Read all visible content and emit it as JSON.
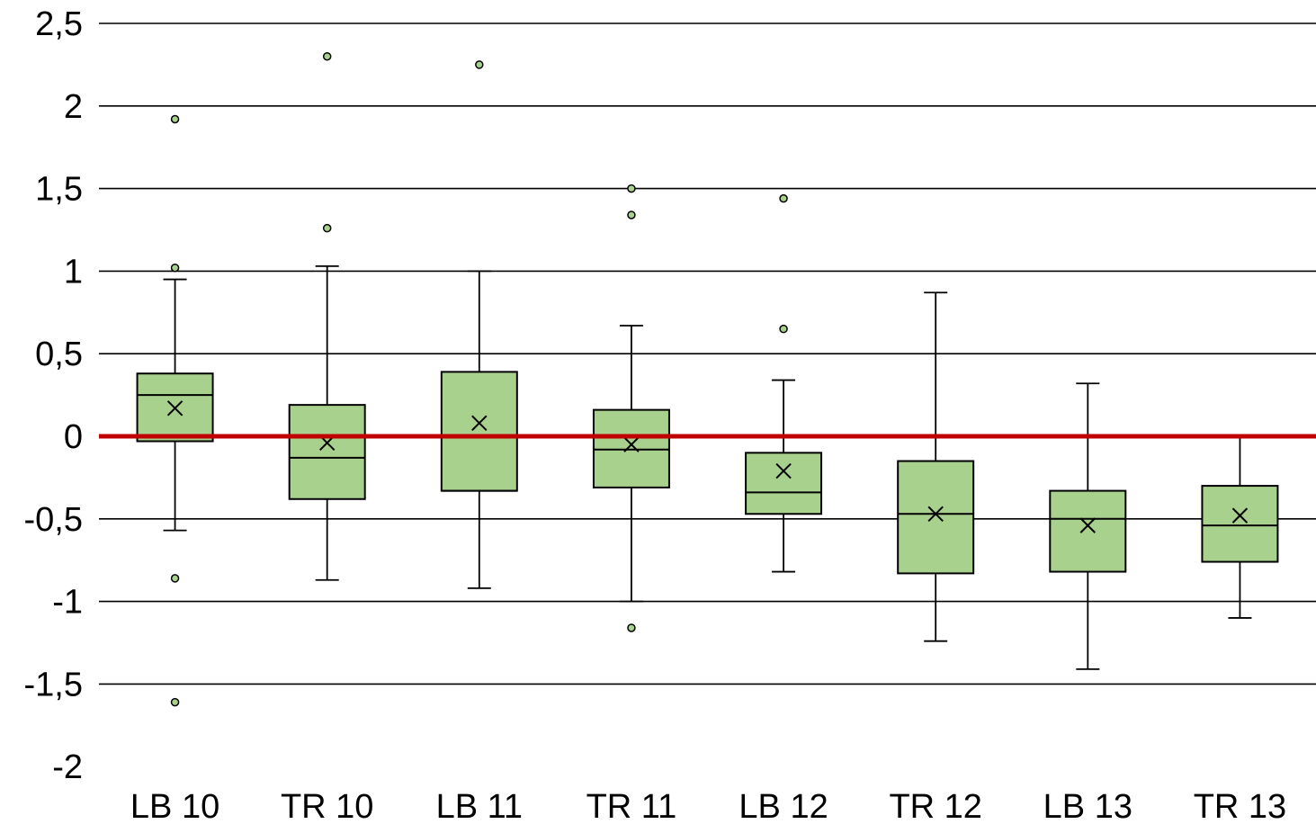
{
  "chart_data": {
    "type": "boxplot",
    "title": "",
    "xlabel": "",
    "ylabel": "",
    "ylim": [
      -2,
      2.5
    ],
    "y_ticks": [
      2.5,
      2,
      1.5,
      1,
      0.5,
      0,
      -0.5,
      -1,
      -1.5,
      -2
    ],
    "y_tick_labels": [
      "2,5",
      "2",
      "1,5",
      "1",
      "0,5",
      "0",
      "-0,5",
      "-1",
      "-1,5",
      "-2"
    ],
    "grid": true,
    "reference_line": {
      "y": 0,
      "color": "#c00000"
    },
    "box_color": "#a9d18e",
    "categories": [
      "LB 10",
      "TR 10",
      "LB 11",
      "TR 11",
      "LB 12",
      "TR 12",
      "LB 13",
      "TR 13"
    ],
    "boxes": [
      {
        "whisker_low": -0.57,
        "q1": -0.03,
        "median": 0.25,
        "q3": 0.38,
        "whisker_high": 0.95,
        "mean": 0.17,
        "outliers": [
          1.92,
          1.02,
          -0.86,
          -1.61
        ]
      },
      {
        "whisker_low": -0.87,
        "q1": -0.38,
        "median": -0.13,
        "q3": 0.19,
        "whisker_high": 1.03,
        "mean": -0.04,
        "outliers": [
          2.3,
          1.26
        ]
      },
      {
        "whisker_low": -0.92,
        "q1": -0.33,
        "median": -0.33,
        "q3": 0.39,
        "whisker_high": 1.0,
        "mean": 0.08,
        "outliers": [
          2.25
        ]
      },
      {
        "whisker_low": -1.0,
        "q1": -0.31,
        "median": -0.08,
        "q3": 0.16,
        "whisker_high": 0.67,
        "mean": -0.05,
        "outliers": [
          1.5,
          1.34,
          -1.16
        ]
      },
      {
        "whisker_low": -0.82,
        "q1": -0.47,
        "median": -0.34,
        "q3": -0.1,
        "whisker_high": 0.34,
        "mean": -0.21,
        "outliers": [
          1.44,
          0.65
        ]
      },
      {
        "whisker_low": -1.24,
        "q1": -0.83,
        "median": -0.47,
        "q3": -0.15,
        "whisker_high": 0.87,
        "mean": -0.47,
        "outliers": []
      },
      {
        "whisker_low": -1.41,
        "q1": -0.82,
        "median": -0.5,
        "q3": -0.33,
        "whisker_high": 0.32,
        "mean": -0.54,
        "outliers": []
      },
      {
        "whisker_low": -1.1,
        "q1": -0.76,
        "median": -0.54,
        "q3": -0.3,
        "whisker_high": 0.0,
        "mean": -0.48,
        "outliers": []
      }
    ]
  }
}
